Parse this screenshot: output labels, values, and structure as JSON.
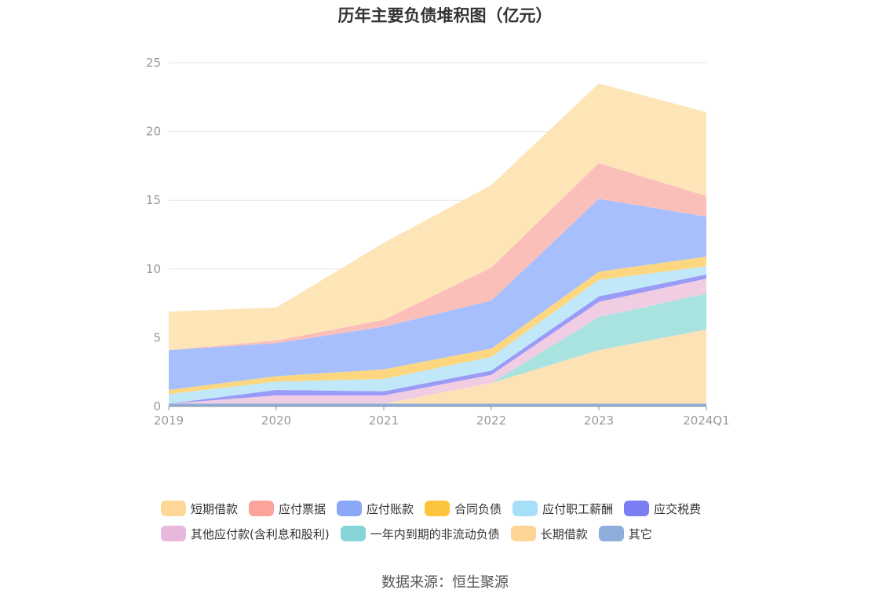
{
  "title": "历年主要负债堆积图（亿元）",
  "source": "数据来源：恒生聚源",
  "chart_data": {
    "type": "area",
    "stacked": true,
    "categories": [
      "2019",
      "2020",
      "2021",
      "2022",
      "2023",
      "2024Q1"
    ],
    "ylim": [
      0,
      25
    ],
    "yticks": [
      0,
      5,
      10,
      15,
      20,
      25
    ],
    "grid": true,
    "legend_position": "bottom",
    "series": [
      {
        "name": "其它",
        "color": "#8eaedb",
        "values": [
          0.2,
          0.2,
          0.2,
          0.2,
          0.2,
          0.2
        ]
      },
      {
        "name": "长期借款",
        "color": "#fde2b5",
        "values": [
          0,
          0,
          0,
          1.5,
          3.9,
          5.4
        ]
      },
      {
        "name": "一年内到期的非流动负债",
        "color": "#a8e3e0",
        "values": [
          0,
          0,
          0,
          0,
          2.4,
          2.6
        ]
      },
      {
        "name": "其他应付款(含利息和股利)",
        "color": "#f0cde3",
        "values": [
          0,
          0.6,
          0.6,
          0.6,
          1.1,
          1.1
        ]
      },
      {
        "name": "应交税费",
        "color": "#9a9bf7",
        "values": [
          0,
          0.4,
          0.3,
          0.3,
          0.4,
          0.3
        ]
      },
      {
        "name": "应付职工薪酬",
        "color": "#c1e8f8",
        "values": [
          0.7,
          0.6,
          0.9,
          1.0,
          1.2,
          0.6
        ]
      },
      {
        "name": "合同负债",
        "color": "#fdd680",
        "values": [
          0.3,
          0.4,
          0.7,
          0.6,
          0.6,
          0.7
        ]
      },
      {
        "name": "应付账款",
        "color": "#a7bffc",
        "values": [
          2.9,
          2.4,
          3.1,
          3.5,
          5.3,
          2.9
        ]
      },
      {
        "name": "应付票据",
        "color": "#fbbfba",
        "values": [
          0,
          0.2,
          0.5,
          2.4,
          2.6,
          1.5
        ]
      },
      {
        "name": "短期借款",
        "color": "#fde5b8",
        "values": [
          2.8,
          2.4,
          5.6,
          6.0,
          5.8,
          6.1
        ]
      }
    ],
    "legend": [
      {
        "name": "短期借款",
        "color": "#ffd797"
      },
      {
        "name": "应付票据",
        "color": "#fba49c"
      },
      {
        "name": "应付账款",
        "color": "#8ba8f8"
      },
      {
        "name": "合同负债",
        "color": "#fdc43e"
      },
      {
        "name": "应付职工薪酬",
        "color": "#a7defa"
      },
      {
        "name": "应交税费",
        "color": "#7b7ef2"
      },
      {
        "name": "其他应付款(含利息和股利)",
        "color": "#e6b8dc"
      },
      {
        "name": "一年内到期的非流动负债",
        "color": "#86d4d6"
      },
      {
        "name": "长期借款",
        "color": "#fdd594"
      },
      {
        "name": "其它",
        "color": "#8eaedb"
      }
    ]
  }
}
